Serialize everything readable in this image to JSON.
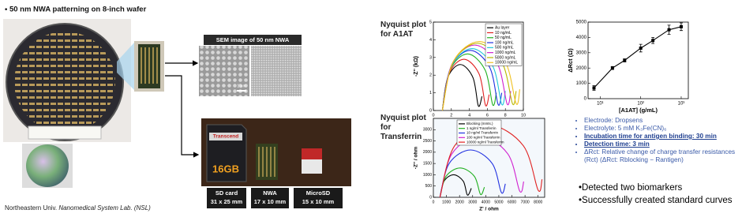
{
  "slide": {
    "header": "• 50 nm NWA patterning on 8-inch wafer",
    "sem_label": "SEM image of 50 nm NWA",
    "scale_bar": "1 μm",
    "sd_brand": "Transcend",
    "sd_capacity": "16GB",
    "cards": [
      {
        "name": "SD card",
        "size": "31 x 25 mm"
      },
      {
        "name": "NWA",
        "size": "17 x 10 mm"
      },
      {
        "name": "MicroSD",
        "size": "15 x 10 mm"
      }
    ],
    "footer": {
      "plain": "Northeastern Univ. ",
      "italic": "Nanomedical System Lab. (NSL)"
    },
    "bullets": [
      "Electrode: Dropsens",
      "Electrolyte: 5 mM K₃Fe(CN)₆",
      "Incubation time for antigen binding: 30 min",
      "Detection time: 3 min",
      "ΔRct: Relative change of charge transfer resistances (Rct) (ΔRct: Rblocking − Rantigen)"
    ],
    "conclusions": [
      "•Detected two biomarkers",
      "•Successfully created standard curves"
    ]
  },
  "chart_data": [
    {
      "type": "line",
      "title": "Nyquist plot for A1AT",
      "xlabel": "Z' (kΩ)",
      "ylabel": "-Z'' (kΩ)",
      "xlim": [
        0,
        10
      ],
      "ylim": [
        0,
        5
      ],
      "xticks": [
        0,
        2,
        4,
        6,
        8,
        10
      ],
      "yticks": [
        0,
        1,
        2,
        3,
        4,
        5
      ],
      "legend": "upper right",
      "series": [
        {
          "name": "Au layer",
          "color": "#000000",
          "x": [
            1,
            1.6,
            3,
            4.4,
            5,
            5.4
          ],
          "values": [
            0,
            1.86,
            2.6,
            1.86,
            0.26,
            0.8
          ]
        },
        {
          "name": "10 ng/mL",
          "color": "#e02020",
          "x": [
            1,
            1.72,
            3.4,
            5.08,
            5.8,
            6.2
          ],
          "values": [
            0,
            2.07,
            2.9,
            2.07,
            0.29,
            0.9
          ]
        },
        {
          "name": "50 ng/mL",
          "color": "#20b020",
          "x": [
            1,
            1.84,
            3.8,
            5.76,
            6.6,
            7.0
          ],
          "values": [
            0,
            2.28,
            3.2,
            2.28,
            0.32,
            1.0
          ]
        },
        {
          "name": "100 ng/mL",
          "color": "#2030e0",
          "x": [
            1,
            1.93,
            4.1,
            6.27,
            7.2,
            7.6
          ],
          "values": [
            0,
            2.43,
            3.4,
            2.43,
            0.34,
            1.0
          ]
        },
        {
          "name": "500 ng/mL",
          "color": "#20c8d8",
          "x": [
            1,
            1.99,
            4.3,
            6.61,
            7.6,
            8.0
          ],
          "values": [
            0,
            2.5,
            3.5,
            2.5,
            0.35,
            1.1
          ]
        },
        {
          "name": "1000 ng/mL",
          "color": "#d020d0",
          "x": [
            1,
            2.08,
            4.6,
            7.12,
            8.2,
            8.6
          ],
          "values": [
            0,
            2.64,
            3.7,
            2.64,
            0.37,
            1.1
          ]
        },
        {
          "name": "5000 ng/mL",
          "color": "#b8b800",
          "x": [
            1,
            2.17,
            4.9,
            7.63,
            8.8,
            9.2
          ],
          "values": [
            0,
            2.71,
            3.8,
            2.71,
            0.38,
            1.1
          ]
        },
        {
          "name": "10000 ng/mL",
          "color": "#f0c020",
          "x": [
            1,
            2.23,
            5.1,
            7.97,
            9.2,
            9.6
          ],
          "values": [
            0,
            2.78,
            3.9,
            2.78,
            0.39,
            1.2
          ]
        }
      ]
    },
    {
      "type": "line",
      "title": "Nyquist plot for Transferrin",
      "xlabel": "Z' / ohm",
      "ylabel": "-Z'' / ohm",
      "xlim": [
        0,
        8500
      ],
      "ylim": [
        0,
        3500
      ],
      "xticks": [
        0,
        1000,
        2000,
        3000,
        4000,
        5000,
        6000,
        7000,
        8000
      ],
      "yticks": [
        0,
        500,
        1000,
        1500,
        2000,
        2500,
        3000
      ],
      "legend": "upper left",
      "series": [
        {
          "name": "Blocking (mmts.)",
          "color": "#000000",
          "x": [
            500,
            815,
            1550,
            2285,
            2600,
            2900
          ],
          "values": [
            0,
            714,
            1000,
            714,
            100,
            400
          ]
        },
        {
          "name": "1 ng/ml Transferrin",
          "color": "#20b020",
          "x": [
            500,
            965,
            2050,
            3135,
            3600,
            3900
          ],
          "values": [
            0,
            928,
            1300,
            928,
            130,
            450
          ]
        },
        {
          "name": "10 ng/ml Transferrin",
          "color": "#2030e0",
          "x": [
            500,
            1205,
            2850,
            4495,
            5200,
            5500
          ],
          "values": [
            0,
            1499,
            2100,
            1499,
            210,
            600
          ]
        },
        {
          "name": "100 ng/ml Transferrin",
          "color": "#d020d0",
          "x": [
            500,
            1415,
            3550,
            5685,
            6600,
            6900
          ],
          "values": [
            0,
            1928,
            2700,
            1928,
            270,
            700
          ]
        },
        {
          "name": "10000 ng/ml Transferrin",
          "color": "#e02020",
          "x": [
            500,
            1625,
            4250,
            6875,
            8000,
            8300
          ],
          "values": [
            0,
            2285,
            3200,
            2285,
            320,
            800
          ]
        }
      ]
    },
    {
      "type": "line",
      "xlabel": "[A1AT] (g/mL)",
      "ylabel": "ΔRct (Ω)",
      "log_x": true,
      "markers": true,
      "xlim": [
        5,
        1500
      ],
      "ylim": [
        0,
        5000
      ],
      "xticks": [
        {
          "value": 10,
          "label": "10¹"
        },
        {
          "value": 100,
          "label": "10²"
        },
        {
          "value": 1000,
          "label": "10³"
        }
      ],
      "yticks": [
        0,
        1000,
        2000,
        3000,
        4000,
        5000
      ],
      "series": [
        {
          "color": "#000000",
          "x": [
            7,
            20,
            40,
            100,
            200,
            500,
            1000
          ],
          "values": [
            700,
            2000,
            2500,
            3300,
            3800,
            4500,
            4700
          ],
          "errors": [
            150,
            100,
            100,
            250,
            200,
            300,
            250
          ]
        }
      ]
    }
  ]
}
